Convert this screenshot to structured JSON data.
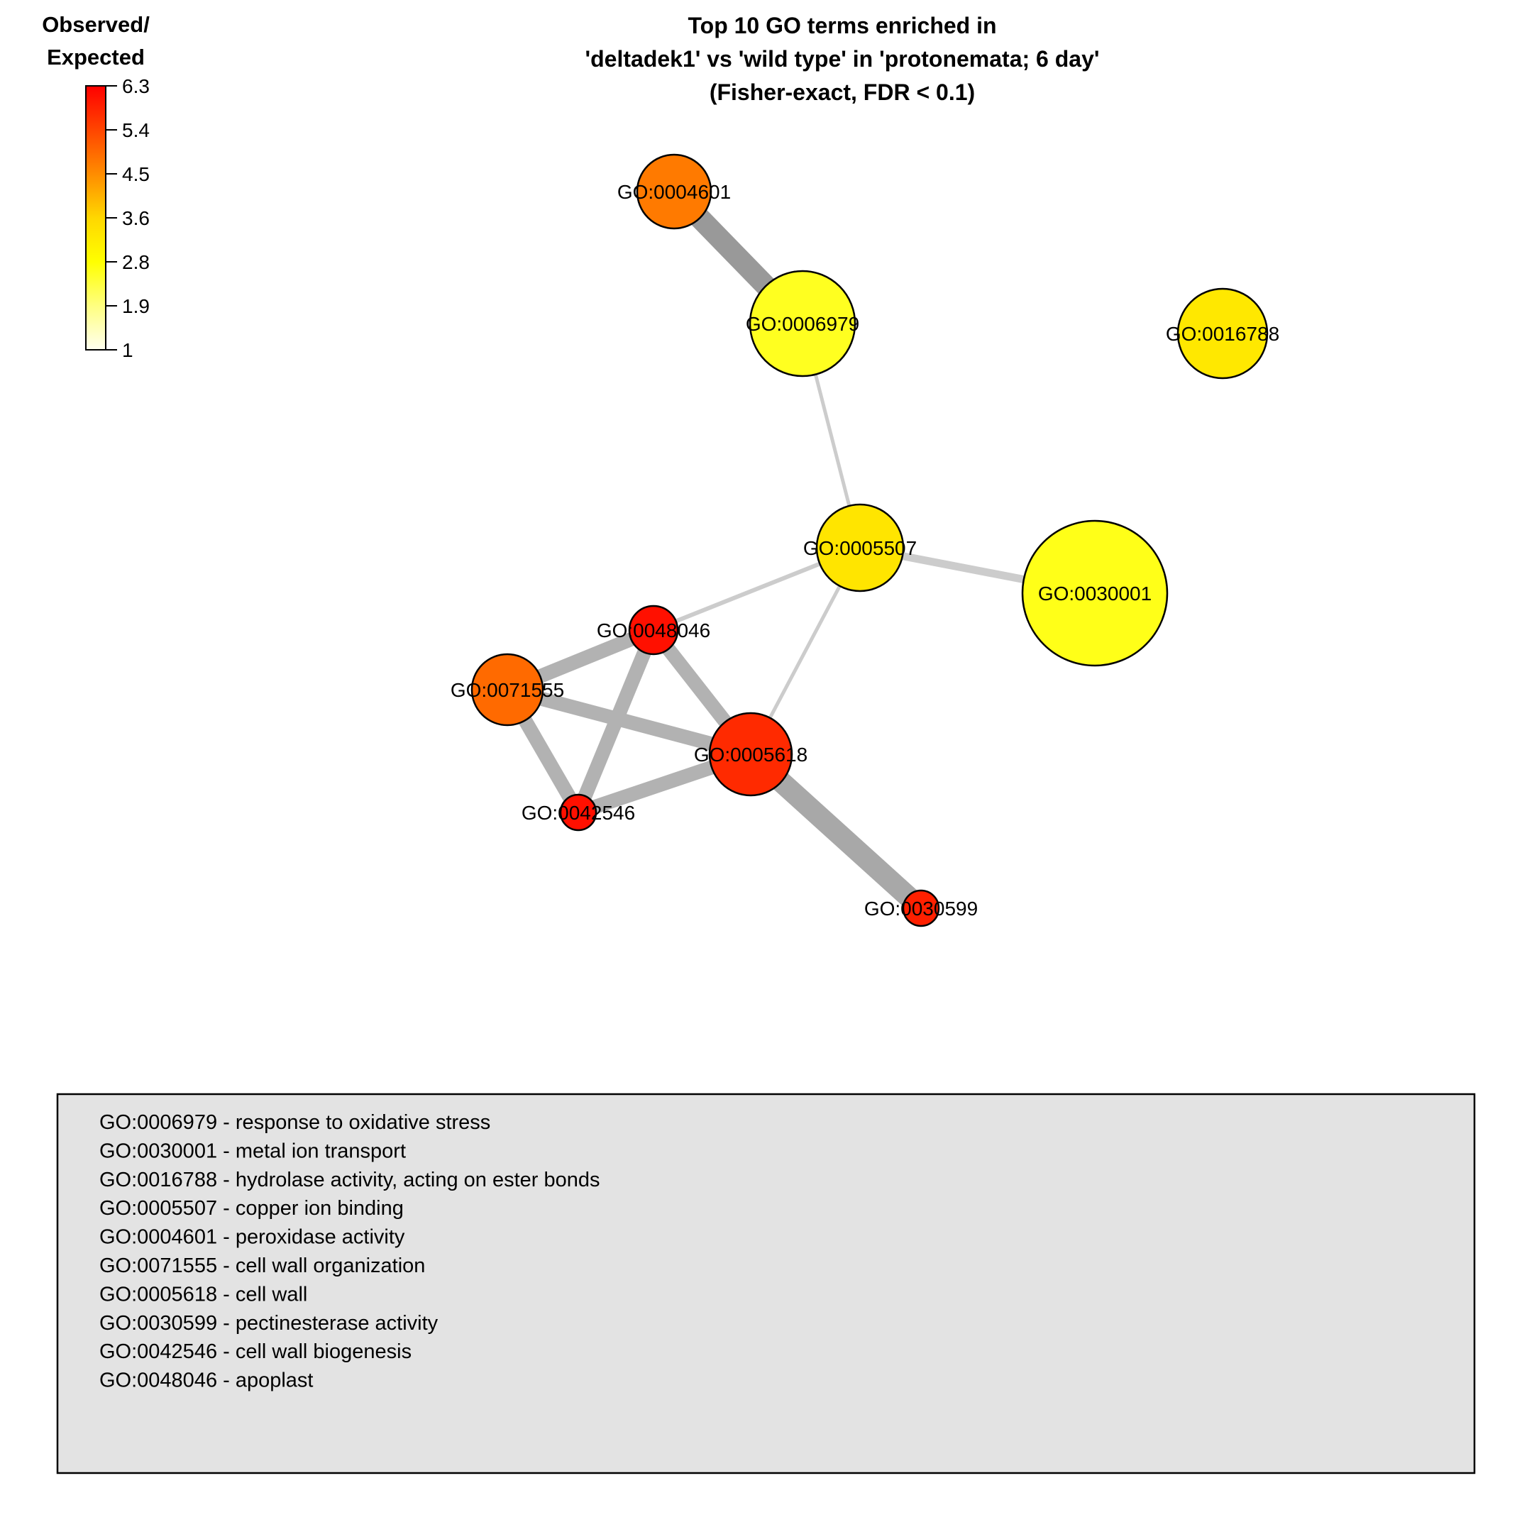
{
  "title": {
    "lines": [
      "Top 10 GO terms enriched in",
      "'deltadek1' vs 'wild type' in 'protonemata; 6 day'",
      "(Fisher-exact, FDR < 0.1)"
    ]
  },
  "color_legend": {
    "title_lines": [
      "Observed/",
      "Expected"
    ],
    "ticks": [
      "6.3",
      "5.4",
      "4.5",
      "3.6",
      "2.8",
      "1.9",
      "1"
    ],
    "gradient": [
      "#FF0000",
      "#FF4500",
      "#FF8C00",
      "#FFD700",
      "#FFFF00",
      "#FFFF80",
      "#FFFFF0"
    ]
  },
  "nodes": [
    {
      "id": "GO:0004601",
      "color": "#FF7A00"
    },
    {
      "id": "GO:0006979",
      "color": "#FFFF20"
    },
    {
      "id": "GO:0016788",
      "color": "#FFE800"
    },
    {
      "id": "GO:0005507",
      "color": "#FFE500"
    },
    {
      "id": "GO:0030001",
      "color": "#FFFF18"
    },
    {
      "id": "GO:0048046",
      "color": "#FF1000"
    },
    {
      "id": "GO:0071555",
      "color": "#FF6A00"
    },
    {
      "id": "GO:0005618",
      "color": "#FF2A00"
    },
    {
      "id": "GO:0042546",
      "color": "#FF1000"
    },
    {
      "id": "GO:0030599",
      "color": "#FF2000"
    }
  ],
  "edges": [
    {
      "source": "GO:0004601",
      "target": "GO:0006979",
      "color": "#999999"
    },
    {
      "source": "GO:0006979",
      "target": "GO:0005507",
      "color": "#cccccc"
    },
    {
      "source": "GO:0005507",
      "target": "GO:0030001",
      "color": "#cccccc"
    },
    {
      "source": "GO:0005507",
      "target": "GO:0048046",
      "color": "#cccccc"
    },
    {
      "source": "GO:0005507",
      "target": "GO:0005618",
      "color": "#cccccc"
    },
    {
      "source": "GO:0048046",
      "target": "GO:0071555",
      "color": "#b2b2b2"
    },
    {
      "source": "GO:0048046",
      "target": "GO:0005618",
      "color": "#b2b2b2"
    },
    {
      "source": "GO:0048046",
      "target": "GO:0042546",
      "color": "#b2b2b2"
    },
    {
      "source": "GO:0071555",
      "target": "GO:0005618",
      "color": "#b2b2b2"
    },
    {
      "source": "GO:0071555",
      "target": "GO:0042546",
      "color": "#b2b2b2"
    },
    {
      "source": "GO:0005618",
      "target": "GO:0042546",
      "color": "#b2b2b2"
    },
    {
      "source": "GO:0005618",
      "target": "GO:0030599",
      "color": "#a8a8a8"
    }
  ],
  "descriptions": [
    "GO:0006979 - response to oxidative stress",
    "GO:0030001 - metal ion transport",
    "GO:0016788 - hydrolase activity, acting on ester bonds",
    "GO:0005507 - copper ion binding",
    "GO:0004601 - peroxidase activity",
    "GO:0071555 - cell wall organization",
    "GO:0005618 - cell wall",
    "GO:0030599 - pectinesterase activity",
    "GO:0042546 - cell wall biogenesis",
    "GO:0048046 - apoplast"
  ],
  "description_box_color": "#E3E3E3"
}
